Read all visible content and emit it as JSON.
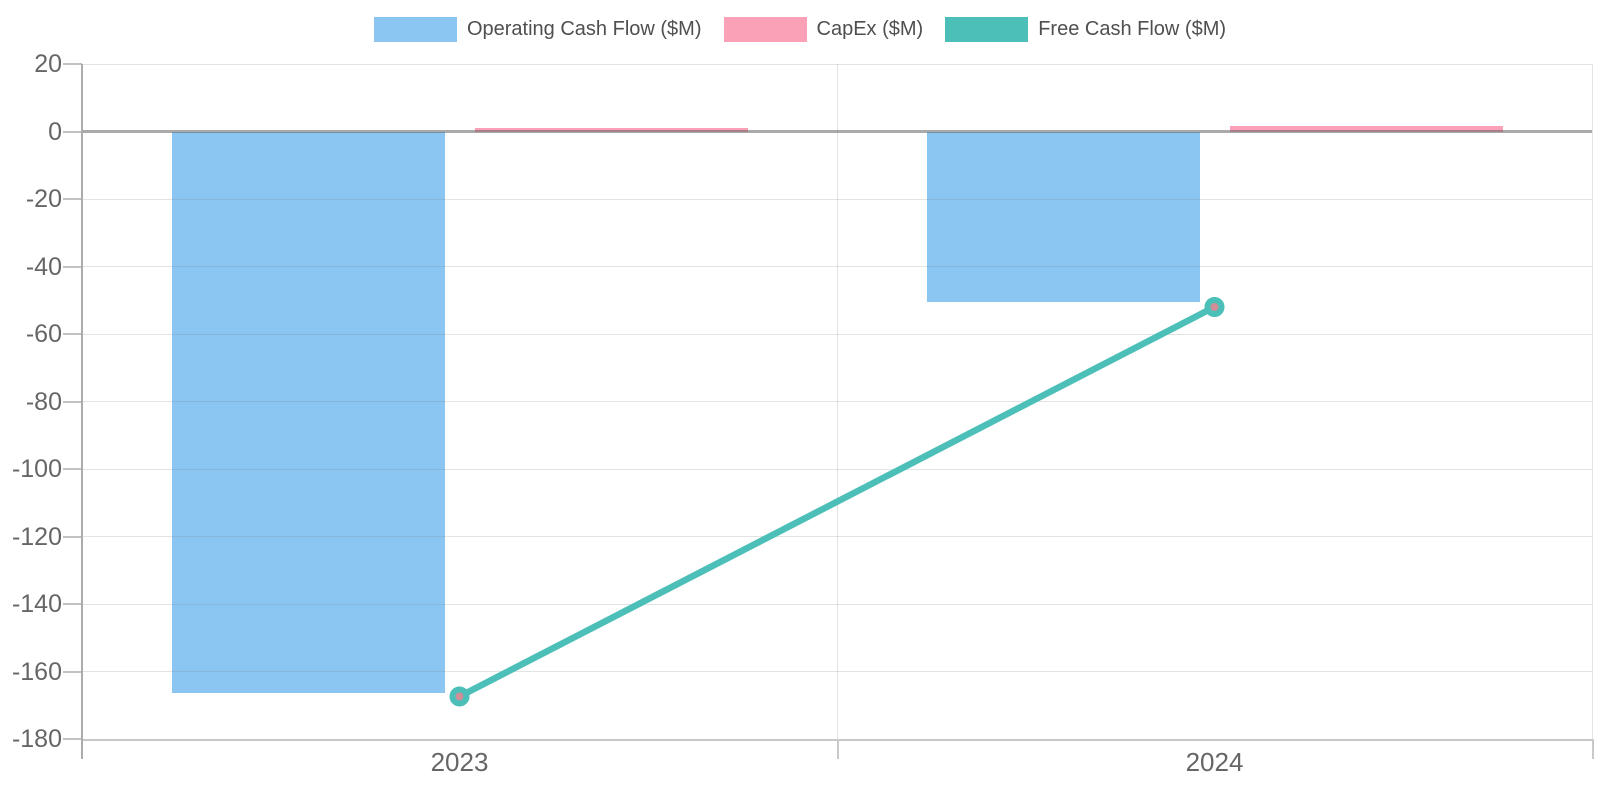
{
  "chart_data": {
    "type": "bar",
    "categories": [
      "2023",
      "2024"
    ],
    "series": [
      {
        "name": "Operating Cash Flow ($M)",
        "type": "bar",
        "color": "#8AC6F1",
        "values": [
          -166.4,
          -50.5
        ]
      },
      {
        "name": "CapEx ($M)",
        "type": "bar",
        "color": "#FAA1B7",
        "values": [
          1.0,
          1.5
        ]
      },
      {
        "name": "Free Cash Flow ($M)",
        "type": "line",
        "color": "#4BBFB8",
        "marker_center_color": "#D08E97",
        "values": [
          -167.4,
          -52.0
        ]
      }
    ],
    "xlabel": "",
    "ylabel": "",
    "ylim": [
      -180,
      20
    ],
    "yticks": [
      20,
      0,
      -20,
      -40,
      -60,
      -80,
      -100,
      -120,
      -140,
      -160,
      -180
    ],
    "grid": true,
    "legend_position": "top",
    "background_color": "#ffffff",
    "tick_label_color": "#666666",
    "legend_label_color": "#4f4f4f"
  }
}
